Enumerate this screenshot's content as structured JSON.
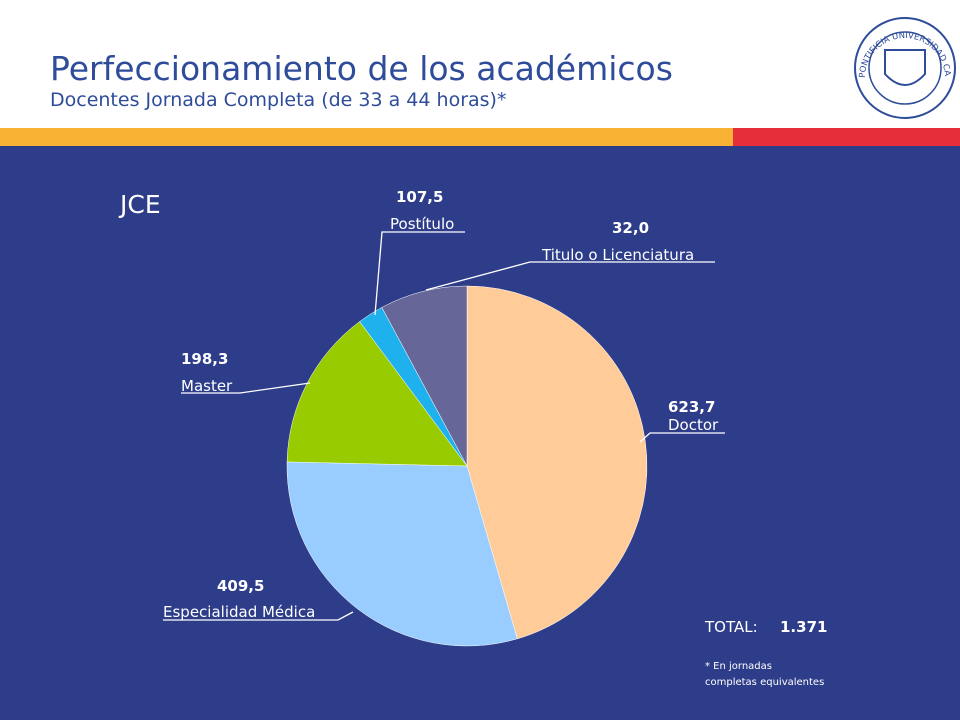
{
  "header": {
    "title": "Perfeccionamiento de los académicos",
    "subtitle": "Docentes Jornada Completa (de 33 a 44 horas)*",
    "logo": "PONTIFICIA UNIVERSIDAD CATÓLICA DE CHILE"
  },
  "chart_data": {
    "type": "pie",
    "title": "JCE",
    "categories": [
      "Doctor",
      "Especialidad Médica",
      "Master",
      "Titulo o Licenciatura",
      "Postítulo"
    ],
    "values": [
      623.7,
      409.5,
      198.3,
      32.0,
      107.5
    ],
    "value_labels": [
      "623,7",
      "409,5",
      "198,3",
      "32,0",
      "107,5"
    ],
    "colors": [
      "#ffcc99",
      "#99ccff",
      "#99cc00",
      "#1fb0ee",
      "#666699"
    ]
  },
  "total": {
    "label": "TOTAL:",
    "value": "1.371"
  },
  "footnote": [
    "* En jornadas",
    "completas equivalentes"
  ]
}
